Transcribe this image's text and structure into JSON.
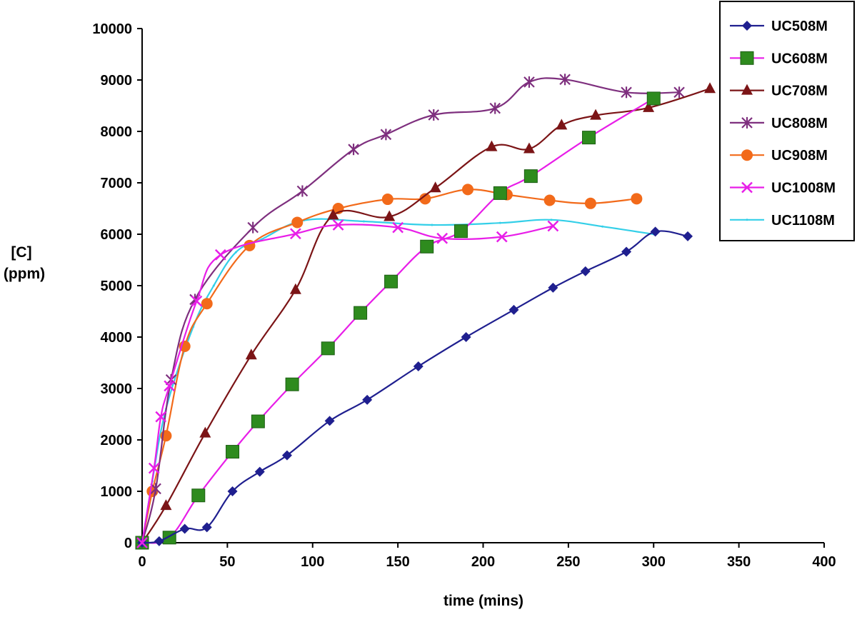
{
  "chart_data": {
    "type": "line",
    "title": "",
    "xlabel": "time (mins)",
    "ylabel_line1": "[C]",
    "ylabel_line2": "(ppm)",
    "xlim": [
      0,
      400
    ],
    "ylim": [
      0,
      10000
    ],
    "xticks": [
      0,
      50,
      100,
      150,
      200,
      250,
      300,
      350,
      400
    ],
    "yticks": [
      0,
      1000,
      2000,
      3000,
      4000,
      5000,
      6000,
      7000,
      8000,
      9000,
      10000
    ],
    "grid": false,
    "legend_position": "top-right",
    "series": [
      {
        "name": "UC508M",
        "color": "#1f1f8f",
        "marker": "diamond",
        "points": [
          [
            0,
            0
          ],
          [
            10,
            30
          ],
          [
            25,
            270
          ],
          [
            38,
            300
          ],
          [
            53,
            1000
          ],
          [
            69,
            1380
          ],
          [
            85,
            1700
          ],
          [
            110,
            2370
          ],
          [
            132,
            2780
          ],
          [
            162,
            3430
          ],
          [
            190,
            4000
          ],
          [
            218,
            4530
          ],
          [
            241,
            4960
          ],
          [
            260,
            5280
          ],
          [
            284,
            5660
          ],
          [
            301,
            6050
          ],
          [
            320,
            5960
          ]
        ]
      },
      {
        "name": "UC608M",
        "color": "#e81ee8",
        "marker": "square",
        "points": [
          [
            0,
            0
          ],
          [
            16,
            100
          ],
          [
            33,
            920
          ],
          [
            53,
            1770
          ],
          [
            68,
            2360
          ],
          [
            88,
            3080
          ],
          [
            109,
            3780
          ],
          [
            128,
            4470
          ],
          [
            146,
            5080
          ],
          [
            167,
            5760
          ],
          [
            187,
            6060
          ],
          [
            210,
            6800
          ],
          [
            228,
            7130
          ],
          [
            262,
            7880
          ],
          [
            300,
            8640
          ]
        ]
      },
      {
        "name": "UC708M",
        "color": "#7b1416",
        "marker": "triangle",
        "points": [
          [
            0,
            0
          ],
          [
            14,
            720
          ],
          [
            37,
            2130
          ],
          [
            64,
            3650
          ],
          [
            90,
            4920
          ],
          [
            112,
            6370
          ],
          [
            145,
            6340
          ],
          [
            172,
            6900
          ],
          [
            205,
            7700
          ],
          [
            227,
            7660
          ],
          [
            246,
            8120
          ],
          [
            266,
            8310
          ],
          [
            297,
            8460
          ],
          [
            333,
            8830
          ]
        ]
      },
      {
        "name": "UC808M",
        "color": "#7e2f7e",
        "marker": "star",
        "points": [
          [
            0,
            0
          ],
          [
            8,
            1050
          ],
          [
            17,
            3170
          ],
          [
            31,
            4730
          ],
          [
            65,
            6130
          ],
          [
            94,
            6840
          ],
          [
            124,
            7650
          ],
          [
            143,
            7940
          ],
          [
            171,
            8320
          ],
          [
            207,
            8450
          ],
          [
            227,
            8960
          ],
          [
            248,
            9010
          ],
          [
            284,
            8760
          ],
          [
            315,
            8760
          ]
        ]
      },
      {
        "name": "UC908M",
        "color": "#f26a1a",
        "marker": "circle",
        "points": [
          [
            0,
            0
          ],
          [
            6,
            1000
          ],
          [
            14,
            2080
          ],
          [
            25,
            3820
          ],
          [
            38,
            4650
          ],
          [
            63,
            5780
          ],
          [
            91,
            6230
          ],
          [
            115,
            6500
          ],
          [
            144,
            6680
          ],
          [
            166,
            6690
          ],
          [
            191,
            6870
          ],
          [
            214,
            6770
          ],
          [
            239,
            6660
          ],
          [
            263,
            6600
          ],
          [
            290,
            6690
          ]
        ]
      },
      {
        "name": "UC1008M",
        "color": "#e81ee8",
        "marker": "x",
        "points": [
          [
            0,
            0
          ],
          [
            7,
            1450
          ],
          [
            11,
            2450
          ],
          [
            16,
            3050
          ],
          [
            32,
            4700
          ],
          [
            46,
            5600
          ],
          [
            90,
            6010
          ],
          [
            115,
            6180
          ],
          [
            150,
            6130
          ],
          [
            176,
            5920
          ],
          [
            211,
            5950
          ],
          [
            241,
            6160
          ]
        ]
      },
      {
        "name": "UC1108M",
        "color": "#33cfe8",
        "marker": "asterisk",
        "points": [
          [
            0,
            0
          ],
          [
            6,
            1200
          ],
          [
            14,
            2600
          ],
          [
            30,
            4200
          ],
          [
            42,
            5000
          ],
          [
            55,
            5650
          ],
          [
            70,
            5900
          ],
          [
            95,
            6270
          ],
          [
            130,
            6250
          ],
          [
            170,
            6180
          ],
          [
            210,
            6220
          ],
          [
            240,
            6280
          ],
          [
            270,
            6150
          ],
          [
            300,
            6000
          ]
        ]
      }
    ]
  }
}
